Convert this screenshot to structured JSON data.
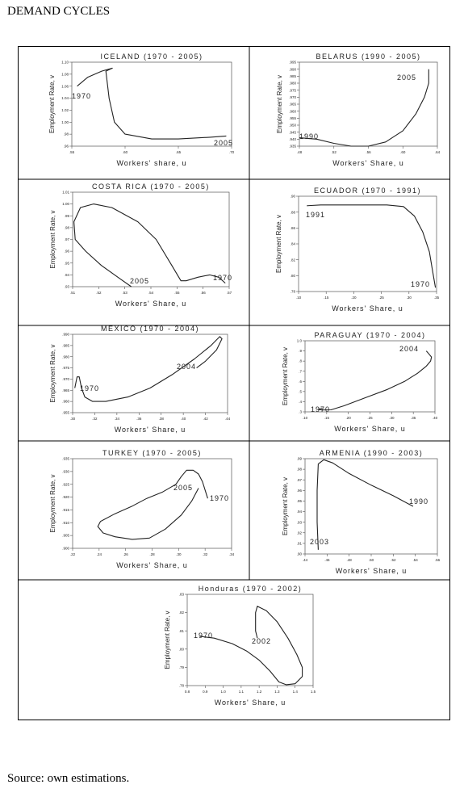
{
  "page": {
    "title": "DEMAND CYCLES",
    "source": "Source: own estimations."
  },
  "colors": {
    "line": "#222222",
    "axis": "#555555",
    "border": "#000000"
  },
  "chart_data": [
    {
      "type": "line",
      "title": "ICELAND (1970 - 2005)",
      "xlabel": "Workers' share, u",
      "ylabel": "Employment Rate, v",
      "xlim": [
        0.55,
        0.7
      ],
      "ylim": [
        0.96,
        1.1
      ],
      "xticks": [
        ".55",
        ".60",
        ".65",
        ".70"
      ],
      "yticks": [
        "1.10",
        "1.08",
        "1.06",
        "1.04",
        "1.02",
        "1.00",
        ".98",
        ".96"
      ],
      "annotations": [
        "1970",
        "2005"
      ],
      "series": [
        {
          "points": [
            [
              0.555,
              1.06
            ],
            [
              0.565,
              1.075
            ],
            [
              0.578,
              1.085
            ],
            [
              0.584,
              1.088
            ],
            [
              0.588,
              1.09
            ],
            [
              0.582,
              1.085
            ],
            [
              0.585,
              1.04
            ],
            [
              0.59,
              1.0
            ],
            [
              0.6,
              0.98
            ],
            [
              0.625,
              0.972
            ],
            [
              0.65,
              0.972
            ],
            [
              0.68,
              0.975
            ],
            [
              0.695,
              0.977
            ]
          ]
        }
      ]
    },
    {
      "type": "line",
      "title": "BELARUS (1990 - 2005)",
      "xlabel": "Workers' Share, u",
      "ylabel": "Employment Rate, v",
      "xlim": [
        0.48,
        0.64
      ],
      "ylim": [
        0.935,
        0.995
      ],
      "xticks": [
        ".48",
        ".52",
        ".56",
        ".60",
        ".64"
      ],
      "yticks": [
        ".995",
        ".990",
        ".985",
        ".980",
        ".975",
        ".970",
        ".965",
        ".960",
        ".955",
        ".950",
        ".945",
        ".940",
        ".935"
      ],
      "annotations": [
        "1990",
        "2005"
      ],
      "series": [
        {
          "points": [
            [
              0.48,
              0.941
            ],
            [
              0.5,
              0.94
            ],
            [
              0.52,
              0.937
            ],
            [
              0.54,
              0.935
            ],
            [
              0.56,
              0.935
            ],
            [
              0.58,
              0.938
            ],
            [
              0.6,
              0.946
            ],
            [
              0.615,
              0.958
            ],
            [
              0.625,
              0.97
            ],
            [
              0.63,
              0.98
            ],
            [
              0.63,
              0.99
            ]
          ]
        }
      ]
    },
    {
      "type": "line",
      "title": "COSTA RICA (1970 - 2005)",
      "xlabel": "Workers' Share, u",
      "ylabel": "Employment Rate, v",
      "xlim": [
        0.51,
        0.57
      ],
      "ylim": [
        0.93,
        1.01
      ],
      "xticks": [
        ".51",
        ".52",
        ".53",
        ".54",
        ".55",
        ".56",
        ".57"
      ],
      "yticks": [
        "1.01",
        "1.00",
        ".99",
        ".98",
        ".97",
        ".96",
        ".95",
        ".94",
        ".93"
      ],
      "annotations": [
        "2005",
        "1970"
      ],
      "series": [
        {
          "points": [
            [
              0.5685,
              0.933
            ],
            [
              0.566,
              0.938
            ],
            [
              0.5625,
              0.94
            ],
            [
              0.558,
              0.938
            ],
            [
              0.5535,
              0.935
            ],
            [
              0.5515,
              0.935
            ],
            [
              0.548,
              0.948
            ],
            [
              0.542,
              0.97
            ],
            [
              0.535,
              0.985
            ],
            [
              0.525,
              0.997
            ],
            [
              0.518,
              1.0
            ],
            [
              0.513,
              0.997
            ],
            [
              0.5105,
              0.985
            ],
            [
              0.511,
              0.97
            ],
            [
              0.515,
              0.96
            ],
            [
              0.521,
              0.948
            ],
            [
              0.528,
              0.937
            ],
            [
              0.5325,
              0.93
            ]
          ]
        }
      ]
    },
    {
      "type": "line",
      "title": "ECUADOR (1970 - 1991)",
      "xlabel": "Workers' Share, u",
      "ylabel": "Employment Rate, v",
      "xlim": [
        0.1,
        0.35
      ],
      "ylim": [
        0.78,
        0.9
      ],
      "xticks": [
        ".10",
        ".15",
        ".20",
        ".25",
        ".30",
        ".35"
      ],
      "yticks": [
        ".90",
        ".88",
        ".86",
        ".84",
        ".82",
        ".80",
        ".78"
      ],
      "annotations": [
        "1991",
        "1970"
      ],
      "series": [
        {
          "points": [
            [
              0.115,
              0.888
            ],
            [
              0.14,
              0.889
            ],
            [
              0.18,
              0.889
            ],
            [
              0.22,
              0.889
            ],
            [
              0.26,
              0.889
            ],
            [
              0.29,
              0.887
            ],
            [
              0.31,
              0.875
            ],
            [
              0.325,
              0.855
            ],
            [
              0.337,
              0.83
            ],
            [
              0.343,
              0.805
            ],
            [
              0.348,
              0.785
            ]
          ]
        }
      ]
    },
    {
      "type": "line",
      "title": "MEXICO (1970 - 2004)",
      "xlabel": "Workers' Share, u",
      "ylabel": "Employment Rate, v",
      "xlim": [
        0.3,
        0.44
      ],
      "ylim": [
        0.955,
        0.99
      ],
      "xticks": [
        ".30",
        ".32",
        ".34",
        ".36",
        ".38",
        ".40",
        ".42",
        ".44"
      ],
      "yticks": [
        ".990",
        ".985",
        ".980",
        ".975",
        ".970",
        ".965",
        ".960",
        ".955"
      ],
      "annotations": [
        "2004",
        "1970"
      ],
      "series": [
        {
          "points": [
            [
              0.302,
              0.966
            ],
            [
              0.304,
              0.971
            ],
            [
              0.306,
              0.971
            ],
            [
              0.308,
              0.966
            ],
            [
              0.311,
              0.962
            ],
            [
              0.318,
              0.96
            ],
            [
              0.33,
              0.96
            ],
            [
              0.35,
              0.962
            ],
            [
              0.37,
              0.966
            ],
            [
              0.39,
              0.972
            ],
            [
              0.41,
              0.979
            ],
            [
              0.425,
              0.985
            ],
            [
              0.433,
              0.989
            ],
            [
              0.435,
              0.988
            ],
            [
              0.43,
              0.983
            ],
            [
              0.42,
              0.978
            ],
            [
              0.412,
              0.975
            ]
          ]
        }
      ]
    },
    {
      "type": "line",
      "title": "PARAGUAY (1970 - 2004)",
      "xlabel": "Workers' Share, u",
      "ylabel": "Employment Rate, v",
      "xlim": [
        0.1,
        0.4
      ],
      "ylim": [
        0.3,
        1.0
      ],
      "xticks": [
        ".10",
        ".15",
        ".20",
        ".25",
        ".30",
        ".35",
        ".40"
      ],
      "yticks": [
        "1.0",
        ".9",
        ".8",
        ".7",
        ".6",
        ".5",
        ".4",
        ".3"
      ],
      "annotations": [
        "2004",
        "1970"
      ],
      "series": [
        {
          "points": [
            [
              0.14,
              0.335
            ],
            [
              0.13,
              0.325
            ],
            [
              0.14,
              0.318
            ],
            [
              0.16,
              0.32
            ],
            [
              0.19,
              0.36
            ],
            [
              0.24,
              0.44
            ],
            [
              0.29,
              0.52
            ],
            [
              0.33,
              0.6
            ],
            [
              0.36,
              0.68
            ],
            [
              0.38,
              0.75
            ],
            [
              0.39,
              0.8
            ],
            [
              0.392,
              0.84
            ],
            [
              0.386,
              0.87
            ],
            [
              0.38,
              0.9
            ]
          ]
        }
      ]
    },
    {
      "type": "line",
      "title": "TURKEY (1970 - 2005)",
      "xlabel": "Workers' Share, u",
      "ylabel": "Employment Rate, v",
      "xlim": [
        0.22,
        0.34
      ],
      "ylim": [
        0.9,
        0.935
      ],
      "xticks": [
        ".22",
        ".24",
        ".26",
        ".28",
        ".30",
        ".32",
        ".34"
      ],
      "yticks": [
        ".935",
        ".930",
        ".925",
        ".920",
        ".915",
        ".910",
        ".905",
        ".900"
      ],
      "annotations": [
        "2005",
        "1970"
      ],
      "series": [
        {
          "points": [
            [
              0.322,
              0.9195
            ],
            [
              0.318,
              0.926
            ],
            [
              0.315,
              0.929
            ],
            [
              0.311,
              0.9305
            ],
            [
              0.306,
              0.9305
            ],
            [
              0.302,
              0.928
            ],
            [
              0.298,
              0.925
            ],
            [
              0.288,
              0.922
            ],
            [
              0.276,
              0.9195
            ],
            [
              0.265,
              0.9165
            ],
            [
              0.252,
              0.9135
            ],
            [
              0.241,
              0.9105
            ],
            [
              0.239,
              0.9085
            ],
            [
              0.243,
              0.906
            ],
            [
              0.252,
              0.9045
            ],
            [
              0.265,
              0.9035
            ],
            [
              0.278,
              0.904
            ],
            [
              0.29,
              0.9075
            ],
            [
              0.302,
              0.913
            ],
            [
              0.31,
              0.9185
            ],
            [
              0.315,
              0.9235
            ]
          ]
        }
      ]
    },
    {
      "type": "line",
      "title": "ARMENIA (1990 - 2003)",
      "xlabel": "Workers' Share, u",
      "ylabel": "Employment Rate, v",
      "xlim": [
        0.44,
        0.56
      ],
      "ylim": [
        0.9,
        0.99
      ],
      "xticks": [
        ".44",
        ".46",
        ".48",
        ".50",
        ".52",
        ".54",
        ".56"
      ],
      "yticks": [
        ".99",
        ".98",
        ".97",
        ".96",
        ".95",
        ".94",
        ".93",
        ".92",
        ".91",
        ".90"
      ],
      "annotations": [
        "1990",
        "2003"
      ],
      "series": [
        {
          "points": [
            [
              0.538,
              0.945
            ],
            [
              0.52,
              0.955
            ],
            [
              0.5,
              0.965
            ],
            [
              0.48,
              0.976
            ],
            [
              0.465,
              0.986
            ],
            [
              0.457,
              0.989
            ],
            [
              0.452,
              0.985
            ],
            [
              0.451,
              0.96
            ],
            [
              0.451,
              0.93
            ],
            [
              0.452,
              0.904
            ]
          ]
        }
      ]
    },
    {
      "type": "line",
      "title": "Honduras (1970 - 2002)",
      "xlabel": "Workers' Share, u",
      "ylabel": "Employment Rate, v",
      "xlim": [
        0.8,
        1.5
      ],
      "ylim": [
        0.78,
        0.83
      ],
      "xticks": [
        "0.8",
        "0.9",
        "1.0",
        "1.1",
        "1.2",
        "1.3",
        "1.4",
        "1.5"
      ],
      "yticks": [
        ".83",
        ".82",
        ".81",
        ".80",
        ".79",
        ".78"
      ],
      "annotations": [
        "1970",
        "2002"
      ],
      "series": [
        {
          "points": [
            [
              0.87,
              0.807
            ],
            [
              0.95,
              0.806
            ],
            [
              1.05,
              0.803
            ],
            [
              1.13,
              0.799
            ],
            [
              1.2,
              0.794
            ],
            [
              1.26,
              0.788
            ],
            [
              1.31,
              0.782
            ],
            [
              1.35,
              0.7805
            ],
            [
              1.4,
              0.781
            ],
            [
              1.44,
              0.785
            ],
            [
              1.44,
              0.79
            ],
            [
              1.41,
              0.797
            ],
            [
              1.36,
              0.806
            ],
            [
              1.3,
              0.815
            ],
            [
              1.24,
              0.821
            ],
            [
              1.19,
              0.8235
            ],
            [
              1.18,
              0.82
            ],
            [
              1.18,
              0.81
            ],
            [
              1.19,
              0.806
            ]
          ]
        }
      ]
    }
  ]
}
